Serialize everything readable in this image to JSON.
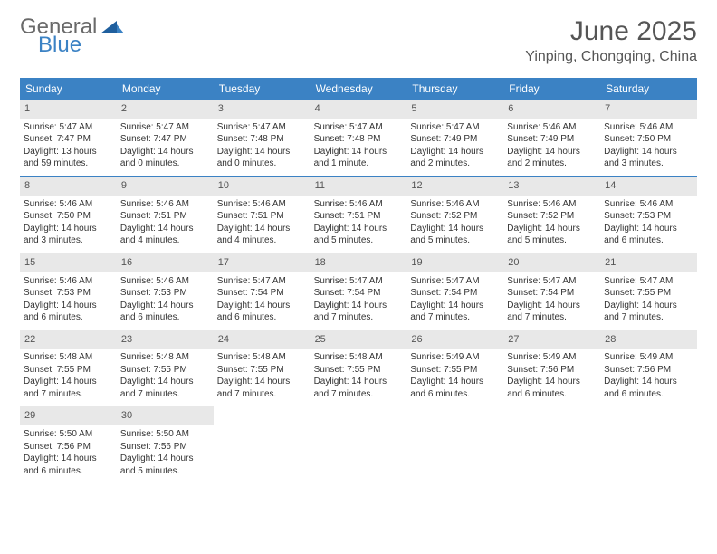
{
  "logo": {
    "word1": "General",
    "word2": "Blue"
  },
  "title": "June 2025",
  "location": "Yinping, Chongqing, China",
  "colors": {
    "header_bar": "#3b82c4",
    "weekday_text": "#ffffff",
    "daynum_bg": "#e8e8e8",
    "text": "#333333",
    "logo_gray": "#6a6a6a",
    "logo_blue": "#3b82c4",
    "background": "#ffffff"
  },
  "weekdays": [
    "Sunday",
    "Monday",
    "Tuesday",
    "Wednesday",
    "Thursday",
    "Friday",
    "Saturday"
  ],
  "weeks": [
    [
      {
        "n": "1",
        "sr": "Sunrise: 5:47 AM",
        "ss": "Sunset: 7:47 PM",
        "dl": "Daylight: 13 hours and 59 minutes."
      },
      {
        "n": "2",
        "sr": "Sunrise: 5:47 AM",
        "ss": "Sunset: 7:47 PM",
        "dl": "Daylight: 14 hours and 0 minutes."
      },
      {
        "n": "3",
        "sr": "Sunrise: 5:47 AM",
        "ss": "Sunset: 7:48 PM",
        "dl": "Daylight: 14 hours and 0 minutes."
      },
      {
        "n": "4",
        "sr": "Sunrise: 5:47 AM",
        "ss": "Sunset: 7:48 PM",
        "dl": "Daylight: 14 hours and 1 minute."
      },
      {
        "n": "5",
        "sr": "Sunrise: 5:47 AM",
        "ss": "Sunset: 7:49 PM",
        "dl": "Daylight: 14 hours and 2 minutes."
      },
      {
        "n": "6",
        "sr": "Sunrise: 5:46 AM",
        "ss": "Sunset: 7:49 PM",
        "dl": "Daylight: 14 hours and 2 minutes."
      },
      {
        "n": "7",
        "sr": "Sunrise: 5:46 AM",
        "ss": "Sunset: 7:50 PM",
        "dl": "Daylight: 14 hours and 3 minutes."
      }
    ],
    [
      {
        "n": "8",
        "sr": "Sunrise: 5:46 AM",
        "ss": "Sunset: 7:50 PM",
        "dl": "Daylight: 14 hours and 3 minutes."
      },
      {
        "n": "9",
        "sr": "Sunrise: 5:46 AM",
        "ss": "Sunset: 7:51 PM",
        "dl": "Daylight: 14 hours and 4 minutes."
      },
      {
        "n": "10",
        "sr": "Sunrise: 5:46 AM",
        "ss": "Sunset: 7:51 PM",
        "dl": "Daylight: 14 hours and 4 minutes."
      },
      {
        "n": "11",
        "sr": "Sunrise: 5:46 AM",
        "ss": "Sunset: 7:51 PM",
        "dl": "Daylight: 14 hours and 5 minutes."
      },
      {
        "n": "12",
        "sr": "Sunrise: 5:46 AM",
        "ss": "Sunset: 7:52 PM",
        "dl": "Daylight: 14 hours and 5 minutes."
      },
      {
        "n": "13",
        "sr": "Sunrise: 5:46 AM",
        "ss": "Sunset: 7:52 PM",
        "dl": "Daylight: 14 hours and 5 minutes."
      },
      {
        "n": "14",
        "sr": "Sunrise: 5:46 AM",
        "ss": "Sunset: 7:53 PM",
        "dl": "Daylight: 14 hours and 6 minutes."
      }
    ],
    [
      {
        "n": "15",
        "sr": "Sunrise: 5:46 AM",
        "ss": "Sunset: 7:53 PM",
        "dl": "Daylight: 14 hours and 6 minutes."
      },
      {
        "n": "16",
        "sr": "Sunrise: 5:46 AM",
        "ss": "Sunset: 7:53 PM",
        "dl": "Daylight: 14 hours and 6 minutes."
      },
      {
        "n": "17",
        "sr": "Sunrise: 5:47 AM",
        "ss": "Sunset: 7:54 PM",
        "dl": "Daylight: 14 hours and 6 minutes."
      },
      {
        "n": "18",
        "sr": "Sunrise: 5:47 AM",
        "ss": "Sunset: 7:54 PM",
        "dl": "Daylight: 14 hours and 7 minutes."
      },
      {
        "n": "19",
        "sr": "Sunrise: 5:47 AM",
        "ss": "Sunset: 7:54 PM",
        "dl": "Daylight: 14 hours and 7 minutes."
      },
      {
        "n": "20",
        "sr": "Sunrise: 5:47 AM",
        "ss": "Sunset: 7:54 PM",
        "dl": "Daylight: 14 hours and 7 minutes."
      },
      {
        "n": "21",
        "sr": "Sunrise: 5:47 AM",
        "ss": "Sunset: 7:55 PM",
        "dl": "Daylight: 14 hours and 7 minutes."
      }
    ],
    [
      {
        "n": "22",
        "sr": "Sunrise: 5:48 AM",
        "ss": "Sunset: 7:55 PM",
        "dl": "Daylight: 14 hours and 7 minutes."
      },
      {
        "n": "23",
        "sr": "Sunrise: 5:48 AM",
        "ss": "Sunset: 7:55 PM",
        "dl": "Daylight: 14 hours and 7 minutes."
      },
      {
        "n": "24",
        "sr": "Sunrise: 5:48 AM",
        "ss": "Sunset: 7:55 PM",
        "dl": "Daylight: 14 hours and 7 minutes."
      },
      {
        "n": "25",
        "sr": "Sunrise: 5:48 AM",
        "ss": "Sunset: 7:55 PM",
        "dl": "Daylight: 14 hours and 7 minutes."
      },
      {
        "n": "26",
        "sr": "Sunrise: 5:49 AM",
        "ss": "Sunset: 7:55 PM",
        "dl": "Daylight: 14 hours and 6 minutes."
      },
      {
        "n": "27",
        "sr": "Sunrise: 5:49 AM",
        "ss": "Sunset: 7:56 PM",
        "dl": "Daylight: 14 hours and 6 minutes."
      },
      {
        "n": "28",
        "sr": "Sunrise: 5:49 AM",
        "ss": "Sunset: 7:56 PM",
        "dl": "Daylight: 14 hours and 6 minutes."
      }
    ],
    [
      {
        "n": "29",
        "sr": "Sunrise: 5:50 AM",
        "ss": "Sunset: 7:56 PM",
        "dl": "Daylight: 14 hours and 6 minutes."
      },
      {
        "n": "30",
        "sr": "Sunrise: 5:50 AM",
        "ss": "Sunset: 7:56 PM",
        "dl": "Daylight: 14 hours and 5 minutes."
      },
      null,
      null,
      null,
      null,
      null
    ]
  ]
}
